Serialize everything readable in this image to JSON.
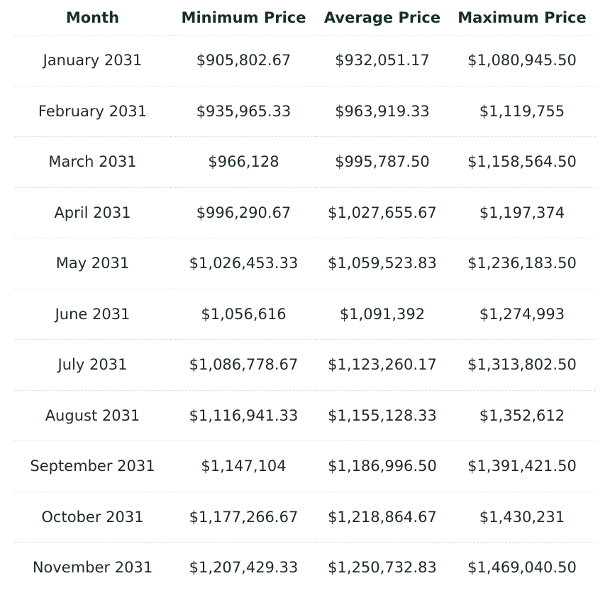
{
  "table": {
    "headers": [
      "Month",
      "Minimum Price",
      "Average Price",
      "Maximum Price"
    ],
    "rows": [
      [
        "January 2031",
        "$905,802.67",
        "$932,051.17",
        "$1,080,945.50"
      ],
      [
        "February 2031",
        "$935,965.33",
        "$963,919.33",
        "$1,119,755"
      ],
      [
        "March 2031",
        "$966,128",
        "$995,787.50",
        "$1,158,564.50"
      ],
      [
        "April 2031",
        "$996,290.67",
        "$1,027,655.67",
        "$1,197,374"
      ],
      [
        "May 2031",
        "$1,026,453.33",
        "$1,059,523.83",
        "$1,236,183.50"
      ],
      [
        "June 2031",
        "$1,056,616",
        "$1,091,392",
        "$1,274,993"
      ],
      [
        "July 2031",
        "$1,086,778.67",
        "$1,123,260.17",
        "$1,313,802.50"
      ],
      [
        "August 2031",
        "$1,116,941.33",
        "$1,155,128.33",
        "$1,352,612"
      ],
      [
        "September 2031",
        "$1,147,104",
        "$1,186,996.50",
        "$1,391,421.50"
      ],
      [
        "October 2031",
        "$1,177,266.67",
        "$1,218,864.67",
        "$1,430,231"
      ],
      [
        "November 2031",
        "$1,207,429.33",
        "$1,250,732.83",
        "$1,469,040.50"
      ]
    ]
  }
}
